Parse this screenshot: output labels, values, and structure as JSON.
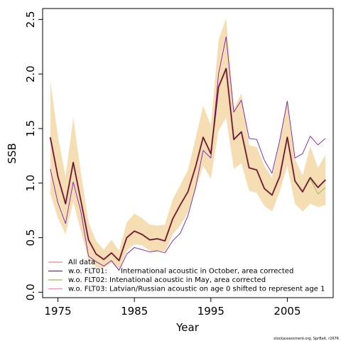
{
  "chart_data": {
    "type": "line",
    "xlabel": "Year",
    "ylabel": "SSB",
    "xlim": [
      1973,
      2011
    ],
    "ylim": [
      -0.05,
      2.6
    ],
    "x_ticks": [
      1975,
      1985,
      1995,
      2005
    ],
    "x_tick_labels": [
      "1975",
      "1985",
      "1995",
      "2005"
    ],
    "y_ticks": [
      0.0,
      0.5,
      1.0,
      1.5,
      2.0,
      2.5
    ],
    "y_tick_labels": [
      "0.0",
      "0.5",
      "1.0",
      "1.5",
      "2.0",
      "2.5"
    ],
    "grid": false,
    "legend_position": "bottom-left",
    "x": [
      1974,
      1975,
      1976,
      1977,
      1978,
      1979,
      1980,
      1981,
      1982,
      1983,
      1984,
      1985,
      1986,
      1987,
      1988,
      1989,
      1990,
      1991,
      1992,
      1993,
      1994,
      1995,
      1996,
      1997,
      1998,
      1999,
      2000,
      2001,
      2002,
      2003,
      2004,
      2005,
      2006,
      2007,
      2008,
      2009,
      2010
    ],
    "band": {
      "color": "#F5DEB3",
      "upper": [
        1.94,
        1.43,
        1.06,
        1.6,
        1.1,
        0.64,
        0.47,
        0.39,
        0.48,
        0.38,
        0.64,
        0.72,
        0.68,
        0.62,
        0.61,
        0.62,
        0.85,
        0.98,
        1.12,
        1.41,
        1.71,
        1.53,
        2.31,
        2.51,
        1.68,
        1.82,
        1.35,
        1.33,
        1.16,
        1.05,
        1.39,
        1.78,
        1.22,
        1.07,
        1.34,
        1.14,
        1.26
      ],
      "lower": [
        0.9,
        0.68,
        0.53,
        0.83,
        0.56,
        0.3,
        0.23,
        0.22,
        0.27,
        0.2,
        0.38,
        0.44,
        0.43,
        0.38,
        0.38,
        0.37,
        0.53,
        0.61,
        0.73,
        0.94,
        1.16,
        1.04,
        1.48,
        1.6,
        1.13,
        1.18,
        0.93,
        0.91,
        0.79,
        0.74,
        0.92,
        1.16,
        0.81,
        0.74,
        0.81,
        0.78,
        0.8
      ]
    },
    "series": [
      {
        "name": "All data",
        "color": "#E8868B",
        "width": 2.6,
        "values": [
          1.42,
          1.06,
          0.81,
          1.19,
          0.84,
          0.48,
          0.35,
          0.3,
          0.36,
          0.29,
          0.5,
          0.56,
          0.53,
          0.48,
          0.49,
          0.47,
          0.67,
          0.8,
          0.92,
          1.15,
          1.42,
          1.27,
          1.88,
          2.05,
          1.4,
          1.47,
          1.14,
          1.12,
          0.95,
          0.89,
          1.06,
          1.42,
          1.02,
          0.92,
          1.05,
          0.96,
          1.03
        ]
      },
      {
        "name": "w.o. FLT01:      International acoustic in October, area corrected",
        "color": "#7B1FA2",
        "width": 0.9,
        "values": [
          1.13,
          0.82,
          0.63,
          1.01,
          0.74,
          0.33,
          0.28,
          0.24,
          0.29,
          0.2,
          0.35,
          0.41,
          0.39,
          0.37,
          0.38,
          0.36,
          0.47,
          0.54,
          0.7,
          0.96,
          1.3,
          1.23,
          2.0,
          2.34,
          1.65,
          1.76,
          1.41,
          1.4,
          1.21,
          1.09,
          1.39,
          1.75,
          1.23,
          1.27,
          1.43,
          1.35,
          1.41
        ]
      },
      {
        "name": "w.o. FLT02: Intenational acoustic in May, area corrected",
        "color": "#8BC34A",
        "width": 0.9,
        "values": [
          1.42,
          1.06,
          0.81,
          1.19,
          0.84,
          0.48,
          0.35,
          0.3,
          0.36,
          0.29,
          0.5,
          0.56,
          0.53,
          0.48,
          0.49,
          0.47,
          0.67,
          0.8,
          0.92,
          1.15,
          1.42,
          1.27,
          1.88,
          2.05,
          1.4,
          1.47,
          1.14,
          1.12,
          0.95,
          0.89,
          1.06,
          1.42,
          1.01,
          0.92,
          1.04,
          0.9,
          0.96
        ]
      },
      {
        "name": "w.o. FLT03: Latvian/Russian acoustic on age 0 shifted to represent age 1",
        "color": "#F48FB1",
        "width": 0.9,
        "values": [
          1.42,
          1.06,
          0.81,
          1.19,
          0.84,
          0.48,
          0.35,
          0.3,
          0.36,
          0.29,
          0.5,
          0.56,
          0.53,
          0.48,
          0.49,
          0.47,
          0.67,
          0.8,
          0.92,
          1.15,
          1.42,
          1.27,
          1.88,
          2.05,
          1.4,
          1.47,
          1.14,
          1.12,
          0.95,
          0.89,
          1.06,
          1.42,
          1.02,
          0.92,
          1.05,
          0.96,
          1.03
        ]
      }
    ],
    "overlay_line": {
      "color": "#3A0F1A",
      "width": 1.2,
      "of_series": 0
    },
    "credit": "stockassessment.org, SprBalt, r2676"
  }
}
